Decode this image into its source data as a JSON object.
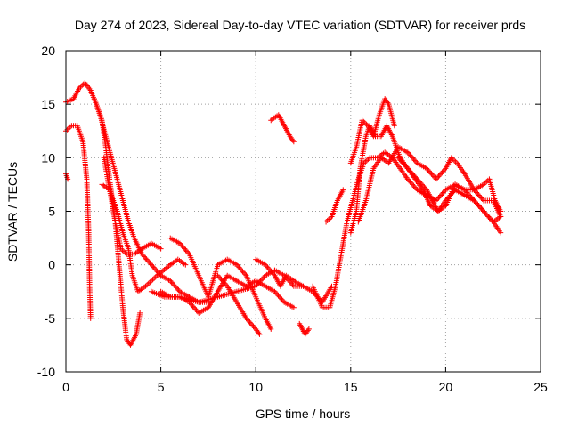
{
  "chart_data": {
    "type": "scatter",
    "title": "Day 274 of 2023, Sidereal Day-to-day VTEC variation (SDTVAR) for receiver prds",
    "xlabel": "GPS time / hours",
    "ylabel": "SDTVAR / TECUs",
    "xlim": [
      0,
      25
    ],
    "ylim": [
      -10,
      20
    ],
    "xticks": [
      0,
      5,
      10,
      15,
      20,
      25
    ],
    "yticks": [
      -10,
      -5,
      0,
      5,
      10,
      15,
      20
    ],
    "xtick_labels": [
      "0",
      "5",
      "10",
      "15",
      "20",
      "25"
    ],
    "ytick_labels": [
      "-10",
      "-5",
      "0",
      "5",
      "10",
      "15",
      "20"
    ],
    "grid": true,
    "marker": "+",
    "color": "#ff0000",
    "series": [
      {
        "name": "s1",
        "points": [
          [
            0,
            15.2
          ],
          [
            0.4,
            15.5
          ],
          [
            0.7,
            16.5
          ],
          [
            1.0,
            17
          ],
          [
            1.3,
            16.3
          ],
          [
            1.6,
            15
          ],
          [
            1.9,
            13.5
          ],
          [
            2.1,
            11
          ],
          [
            2.3,
            8
          ],
          [
            2.6,
            4
          ],
          [
            2.9,
            1.5
          ],
          [
            3.2,
            1
          ],
          [
            3.6,
            1
          ],
          [
            4.0,
            1.5
          ],
          [
            4.5,
            2
          ],
          [
            5.0,
            1.5
          ]
        ]
      },
      {
        "name": "s2",
        "points": [
          [
            1.5,
            15.5
          ],
          [
            1.8,
            14
          ],
          [
            2.1,
            12
          ],
          [
            2.4,
            10
          ],
          [
            2.7,
            8
          ],
          [
            3.0,
            6
          ],
          [
            3.3,
            4
          ],
          [
            3.6,
            2.5
          ],
          [
            4.0,
            1
          ],
          [
            4.5,
            0
          ],
          [
            5.0,
            -1
          ],
          [
            5.5,
            -1.5
          ],
          [
            6.0,
            -2.5
          ],
          [
            6.5,
            -3
          ],
          [
            7.0,
            -3.5
          ],
          [
            7.5,
            -3.5
          ]
        ]
      },
      {
        "name": "s3",
        "points": [
          [
            2.0,
            10
          ],
          [
            2.3,
            7
          ],
          [
            2.6,
            4
          ],
          [
            2.8,
            0
          ],
          [
            3.0,
            -4
          ],
          [
            3.2,
            -7
          ],
          [
            3.4,
            -7.5
          ],
          [
            3.7,
            -6.5
          ],
          [
            3.9,
            -4.5
          ]
        ]
      },
      {
        "name": "s4",
        "points": [
          [
            0,
            12.5
          ],
          [
            0.3,
            13
          ],
          [
            0.6,
            13
          ],
          [
            0.9,
            11.5
          ],
          [
            1.1,
            8
          ],
          [
            1.2,
            3
          ],
          [
            1.25,
            -2
          ],
          [
            1.3,
            -5
          ]
        ]
      },
      {
        "name": "s5",
        "points": [
          [
            0,
            8.5
          ],
          [
            0.1,
            8
          ]
        ]
      },
      {
        "name": "s6",
        "points": [
          [
            1.9,
            7.5
          ],
          [
            2.3,
            7
          ],
          [
            2.7,
            5
          ],
          [
            3.0,
            3
          ],
          [
            3.3,
            1.5
          ],
          [
            3.5,
            -1
          ],
          [
            3.8,
            -2.5
          ],
          [
            4.2,
            -2
          ],
          [
            4.8,
            -1
          ],
          [
            5.5,
            0
          ],
          [
            5.9,
            0.5
          ],
          [
            6.3,
            0
          ]
        ]
      },
      {
        "name": "s7",
        "points": [
          [
            5.0,
            -2.5
          ],
          [
            5.5,
            -3
          ],
          [
            6.0,
            -3
          ],
          [
            6.5,
            -3.5
          ],
          [
            7.0,
            -4.5
          ],
          [
            7.5,
            -4
          ],
          [
            8.0,
            -2.5
          ],
          [
            8.5,
            -1
          ],
          [
            9.0,
            -1.5
          ],
          [
            9.5,
            -2
          ],
          [
            10.0,
            -1.5
          ],
          [
            10.5,
            -2
          ],
          [
            11.0,
            -2.5
          ],
          [
            11.5,
            -3.5
          ],
          [
            12.0,
            -4
          ]
        ]
      },
      {
        "name": "s8",
        "points": [
          [
            5.5,
            2.5
          ],
          [
            6.0,
            2
          ],
          [
            6.5,
            1
          ],
          [
            7.0,
            -1
          ],
          [
            7.5,
            -3
          ],
          [
            8.0,
            0
          ],
          [
            8.5,
            0.5
          ],
          [
            9.0,
            0
          ],
          [
            9.5,
            -1
          ],
          [
            10.0,
            -3
          ],
          [
            10.5,
            -5
          ],
          [
            10.8,
            -6
          ]
        ]
      },
      {
        "name": "s9",
        "points": [
          [
            4.5,
            -2.5
          ],
          [
            5.2,
            -3
          ],
          [
            6.0,
            -3
          ],
          [
            7.0,
            -3.5
          ],
          [
            8.0,
            -3
          ],
          [
            9.0,
            -2.5
          ],
          [
            10.0,
            -2
          ],
          [
            10.5,
            -1
          ],
          [
            11.0,
            -0.5
          ],
          [
            11.5,
            -1
          ],
          [
            12.0,
            -2
          ],
          [
            12.5,
            -2
          ],
          [
            13.0,
            -2.5
          ],
          [
            13.5,
            -3.5
          ],
          [
            14.0,
            -2
          ]
        ]
      },
      {
        "name": "s10",
        "points": [
          [
            8.0,
            -1
          ],
          [
            8.5,
            -2
          ],
          [
            9.0,
            -3.5
          ],
          [
            9.5,
            -5
          ],
          [
            10.0,
            -6
          ],
          [
            10.2,
            -6.5
          ]
        ]
      },
      {
        "name": "s11",
        "points": [
          [
            10.0,
            0.5
          ],
          [
            10.5,
            0
          ],
          [
            11.0,
            -1
          ],
          [
            11.3,
            -2
          ],
          [
            11.6,
            -1
          ],
          [
            12.0,
            -1.5
          ],
          [
            12.5,
            -2
          ]
        ]
      },
      {
        "name": "s12",
        "points": [
          [
            10.8,
            13.5
          ],
          [
            11.2,
            14
          ],
          [
            11.5,
            13
          ],
          [
            11.8,
            12
          ],
          [
            12.0,
            11.5
          ]
        ]
      },
      {
        "name": "s13",
        "points": [
          [
            12.3,
            -5.5
          ],
          [
            12.6,
            -6.5
          ],
          [
            12.8,
            -6
          ]
        ]
      },
      {
        "name": "s14",
        "points": [
          [
            13.0,
            -2
          ],
          [
            13.5,
            -4
          ],
          [
            13.9,
            -4
          ],
          [
            14.2,
            -2
          ],
          [
            14.5,
            1
          ],
          [
            14.8,
            4
          ],
          [
            15.1,
            6
          ],
          [
            15.4,
            8
          ],
          [
            15.7,
            9.5
          ],
          [
            16.0,
            10
          ],
          [
            16.4,
            10
          ],
          [
            16.8,
            10.5
          ],
          [
            17.2,
            10
          ],
          [
            17.6,
            9
          ],
          [
            18.0,
            8
          ],
          [
            18.5,
            7
          ],
          [
            19.0,
            6.5
          ],
          [
            19.5,
            6
          ],
          [
            20.0,
            7
          ],
          [
            20.5,
            7.5
          ],
          [
            21.0,
            7
          ],
          [
            21.5,
            6
          ],
          [
            22.0,
            5
          ],
          [
            22.5,
            4
          ],
          [
            22.9,
            3
          ]
        ]
      },
      {
        "name": "s15",
        "points": [
          [
            15.0,
            3
          ],
          [
            15.3,
            5
          ],
          [
            15.5,
            9
          ],
          [
            15.8,
            12
          ],
          [
            16.0,
            13
          ],
          [
            16.3,
            12
          ],
          [
            16.6,
            12
          ],
          [
            16.9,
            13
          ],
          [
            17.2,
            12
          ],
          [
            17.6,
            10
          ],
          [
            18.0,
            9
          ],
          [
            18.4,
            8
          ],
          [
            18.8,
            7
          ],
          [
            19.2,
            5.5
          ],
          [
            19.6,
            5
          ],
          [
            20.0,
            6
          ],
          [
            20.5,
            7
          ],
          [
            21.0,
            6.5
          ],
          [
            21.5,
            6
          ],
          [
            22.0,
            5
          ],
          [
            22.5,
            4
          ],
          [
            22.9,
            4.5
          ]
        ]
      },
      {
        "name": "s16",
        "points": [
          [
            15.0,
            9.5
          ],
          [
            15.3,
            11
          ],
          [
            15.6,
            13.5
          ],
          [
            15.9,
            13
          ],
          [
            16.2,
            12
          ],
          [
            16.5,
            14
          ],
          [
            16.8,
            15.5
          ],
          [
            17.0,
            15
          ],
          [
            17.3,
            13
          ]
        ]
      },
      {
        "name": "s17",
        "points": [
          [
            15.4,
            4
          ],
          [
            15.8,
            6
          ],
          [
            16.2,
            9
          ],
          [
            16.6,
            10
          ],
          [
            17.0,
            9.5
          ],
          [
            17.5,
            11
          ],
          [
            18.0,
            10.5
          ],
          [
            18.5,
            9.5
          ],
          [
            19.0,
            9
          ],
          [
            19.5,
            8
          ],
          [
            20.0,
            9
          ],
          [
            20.3,
            10
          ],
          [
            20.6,
            9.5
          ],
          [
            21.0,
            8.5
          ],
          [
            21.5,
            7
          ],
          [
            22.0,
            6
          ],
          [
            22.5,
            6
          ],
          [
            22.9,
            4.5
          ]
        ]
      },
      {
        "name": "s18",
        "points": [
          [
            13.7,
            4
          ],
          [
            14.0,
            4.5
          ],
          [
            14.3,
            6
          ],
          [
            14.6,
            7
          ]
        ]
      },
      {
        "name": "s19",
        "points": [
          [
            17.5,
            10
          ],
          [
            18.0,
            9
          ],
          [
            18.5,
            8
          ],
          [
            19.0,
            7
          ],
          [
            19.3,
            6
          ],
          [
            19.6,
            5
          ],
          [
            20.0,
            5.5
          ],
          [
            20.5,
            7.5
          ],
          [
            21.0,
            7
          ],
          [
            21.5,
            7
          ],
          [
            22.0,
            7.5
          ],
          [
            22.3,
            8
          ],
          [
            22.6,
            6
          ],
          [
            22.9,
            5
          ]
        ]
      }
    ]
  }
}
